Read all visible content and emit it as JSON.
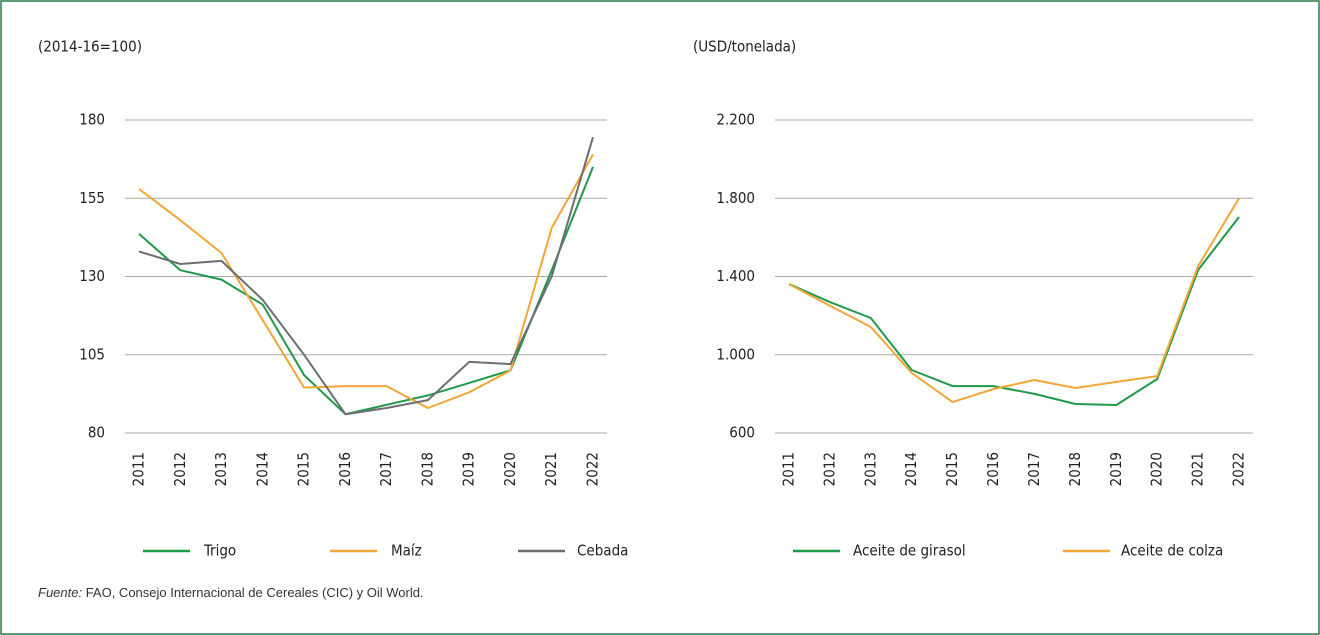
{
  "chart_data": [
    {
      "type": "line",
      "y_label": "(2014-16=100)",
      "categories": [
        "2011",
        "2012",
        "2013",
        "2014",
        "2015",
        "2016",
        "2017",
        "2018",
        "2019",
        "2020",
        "2021",
        "2022"
      ],
      "ylim": [
        80,
        180
      ],
      "yticks": [
        80,
        105,
        130,
        155,
        180
      ],
      "grid": true,
      "series": [
        {
          "name": "Trigo",
          "color": "#1f9a48",
          "values": [
            143.6,
            132,
            129,
            121,
            98.5,
            86,
            89,
            92,
            96,
            100,
            132,
            165
          ]
        },
        {
          "name": "Maíz",
          "color": "#f2a636",
          "values": [
            158,
            148,
            137.5,
            116,
            94.5,
            95,
            95,
            88,
            93,
            100,
            145.5,
            169
          ]
        },
        {
          "name": "Cebada",
          "color": "#6d6e71",
          "values": [
            138,
            134,
            135,
            122.5,
            105,
            86,
            88,
            90.5,
            102.7,
            102,
            130,
            174.5
          ]
        }
      ]
    },
    {
      "type": "line",
      "y_label": "(USD/tonelada)",
      "categories": [
        "2011",
        "2012",
        "2013",
        "2014",
        "2015",
        "2016",
        "2017",
        "2018",
        "2019",
        "2020",
        "2021",
        "2022"
      ],
      "ylim": [
        600,
        2200
      ],
      "yticks": [
        600,
        {
          "value": 1000,
          "label": "1.000"
        },
        {
          "value": 1400,
          "label": "1.400"
        },
        {
          "value": 1800,
          "label": "1.800"
        },
        {
          "value": 2200,
          "label": "2.200"
        }
      ],
      "grid": true,
      "series": [
        {
          "name": "Aceite de girasol",
          "color": "#1f9a48",
          "values": [
            1361,
            1269,
            1188,
            922,
            840,
            840,
            800,
            748,
            743,
            876,
            1433,
            1704
          ]
        },
        {
          "name": "Aceite de colza",
          "color": "#f2a636",
          "values": [
            1361,
            1250,
            1142,
            907,
            758,
            825,
            871,
            830,
            861,
            891,
            1453,
            1800
          ]
        }
      ]
    }
  ],
  "source": {
    "label": "Fuente:",
    "text": " FAO, Consejo Internacional de Cereales (CIC) y Oil World."
  }
}
